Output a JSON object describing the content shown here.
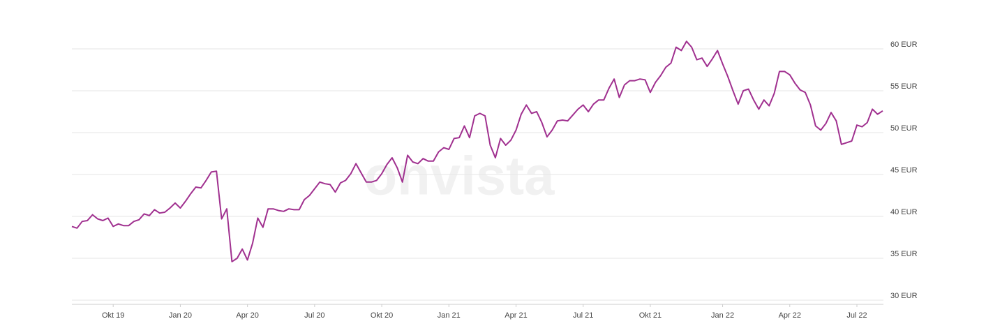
{
  "chart_data": {
    "type": "line",
    "watermark": "onvista",
    "categories": [
      null,
      null,
      null,
      null,
      null,
      null,
      null,
      null,
      "Okt 19",
      null,
      null,
      null,
      null,
      null,
      null,
      null,
      null,
      null,
      null,
      null,
      null,
      "Jan 20",
      null,
      null,
      null,
      null,
      null,
      null,
      null,
      null,
      null,
      null,
      null,
      null,
      "Apr 20",
      null,
      null,
      null,
      null,
      null,
      null,
      null,
      null,
      null,
      null,
      null,
      null,
      "Jul 20",
      null,
      null,
      null,
      null,
      null,
      null,
      null,
      null,
      null,
      null,
      null,
      null,
      "Okt 20",
      null,
      null,
      null,
      null,
      null,
      null,
      null,
      null,
      null,
      null,
      null,
      null,
      "Jan 21",
      null,
      null,
      null,
      null,
      null,
      null,
      null,
      null,
      null,
      null,
      null,
      null,
      "Apr 21",
      null,
      null,
      null,
      null,
      null,
      null,
      null,
      null,
      null,
      null,
      null,
      null,
      "Jul 21",
      null,
      null,
      null,
      null,
      null,
      null,
      null,
      null,
      null,
      null,
      null,
      null,
      "Okt 21",
      null,
      null,
      null,
      null,
      null,
      null,
      null,
      null,
      null,
      null,
      null,
      null,
      null,
      "Jan 22",
      null,
      null,
      null,
      null,
      null,
      null,
      null,
      null,
      null,
      null,
      null,
      null,
      "Apr 22",
      null,
      null,
      null,
      null,
      null,
      null,
      null,
      null,
      null,
      null,
      null,
      null,
      "Jul 22",
      null,
      null,
      null,
      null,
      null
    ],
    "series": [
      {
        "color": "#a0308f",
        "values": [
          38.8,
          38.6,
          39.4,
          39.5,
          40.2,
          39.7,
          39.5,
          39.8,
          38.8,
          39.1,
          38.9,
          38.9,
          39.4,
          39.6,
          40.3,
          40.1,
          40.8,
          40.4,
          40.5,
          41.0,
          41.6,
          41.0,
          41.8,
          42.7,
          43.5,
          43.4,
          44.3,
          45.3,
          45.4,
          39.7,
          40.9,
          34.6,
          35.0,
          36.1,
          34.8,
          36.8,
          39.8,
          38.7,
          40.9,
          40.9,
          40.7,
          40.6,
          40.9,
          40.8,
          40.8,
          42.0,
          42.5,
          43.3,
          44.1,
          43.9,
          43.8,
          42.9,
          44.0,
          44.3,
          45.1,
          46.3,
          45.2,
          44.1,
          44.1,
          44.3,
          45.1,
          46.2,
          47.0,
          45.8,
          44.1,
          47.3,
          46.5,
          46.3,
          46.9,
          46.6,
          46.6,
          47.7,
          48.2,
          48.0,
          49.3,
          49.4,
          50.8,
          49.4,
          52.0,
          52.3,
          52.0,
          48.5,
          47.0,
          49.3,
          48.5,
          49.1,
          50.3,
          52.2,
          53.3,
          52.3,
          52.5,
          51.2,
          49.5,
          50.3,
          51.4,
          51.5,
          51.4,
          52.1,
          52.8,
          53.3,
          52.5,
          53.4,
          53.9,
          53.9,
          55.3,
          56.4,
          54.2,
          55.7,
          56.2,
          56.2,
          56.4,
          56.3,
          54.8,
          56.0,
          56.8,
          57.8,
          58.3,
          60.2,
          59.8,
          60.9,
          60.2,
          58.7,
          58.9,
          57.9,
          58.8,
          59.8,
          58.2,
          56.7,
          55.0,
          53.4,
          55.0,
          55.2,
          53.9,
          52.8,
          53.9,
          53.2,
          54.7,
          57.3,
          57.3,
          56.9,
          55.9,
          55.1,
          54.8,
          53.3,
          50.8,
          50.3,
          51.1,
          52.4,
          51.4,
          48.6,
          48.8,
          49.0,
          50.9,
          50.7,
          51.2,
          52.8,
          52.2,
          52.6
        ]
      }
    ],
    "ylim": [
      29.5,
      62.5
    ],
    "yticks": [
      {
        "value": 30,
        "label": "30 EUR"
      },
      {
        "value": 35,
        "label": "35 EUR"
      },
      {
        "value": 40,
        "label": "40 EUR"
      },
      {
        "value": 45,
        "label": "45 EUR"
      },
      {
        "value": 50,
        "label": "50 EUR"
      },
      {
        "value": 55,
        "label": "55 EUR"
      },
      {
        "value": 60,
        "label": "60 EUR"
      }
    ],
    "grid": true
  }
}
